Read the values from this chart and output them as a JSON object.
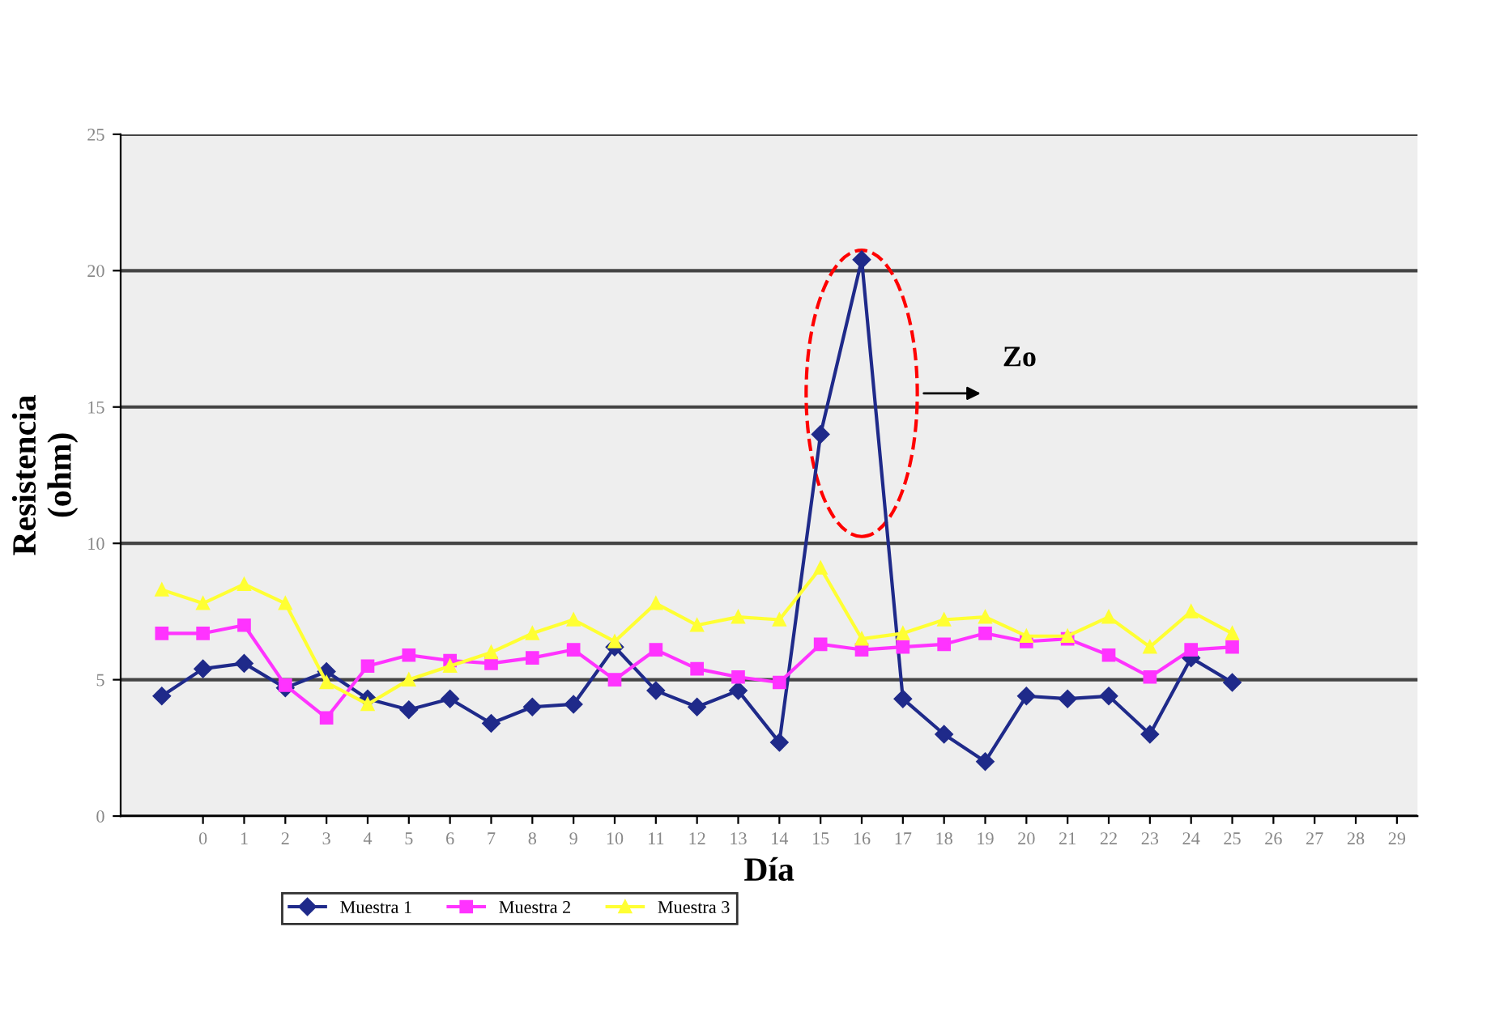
{
  "chart_data": {
    "type": "line",
    "xlabel": "Día",
    "ylabel": "Resistencia\n(ohm)",
    "x": [
      -1,
      0,
      1,
      2,
      3,
      4,
      5,
      6,
      7,
      8,
      9,
      10,
      11,
      12,
      13,
      14,
      15,
      16,
      17,
      18,
      19,
      20,
      21,
      22,
      23,
      24,
      25
    ],
    "series": [
      {
        "name": "Muestra 1",
        "color": "#1f2a8a",
        "marker": "diamond",
        "values": [
          4.4,
          5.4,
          5.6,
          4.7,
          5.3,
          4.3,
          3.9,
          4.3,
          3.4,
          4.0,
          4.1,
          6.2,
          4.6,
          4.0,
          4.6,
          2.7,
          14.0,
          20.4,
          4.3,
          3.0,
          2.0,
          4.4,
          4.3,
          4.4,
          3.0,
          5.8,
          4.9
        ]
      },
      {
        "name": "Muestra 2",
        "color": "#ff33ff",
        "marker": "square",
        "values": [
          6.7,
          6.7,
          7.0,
          4.8,
          3.6,
          5.5,
          5.9,
          5.7,
          5.6,
          5.8,
          6.1,
          5.0,
          6.1,
          5.4,
          5.1,
          4.9,
          6.3,
          6.1,
          6.2,
          6.3,
          6.7,
          6.4,
          6.5,
          5.9,
          5.1,
          6.1,
          6.2
        ]
      },
      {
        "name": "Muestra 3",
        "color": "#ffff33",
        "marker": "triangle",
        "values": [
          8.3,
          7.8,
          8.5,
          7.8,
          4.9,
          4.1,
          5.0,
          5.5,
          6.0,
          6.7,
          7.2,
          6.4,
          7.8,
          7.0,
          7.3,
          7.2,
          9.1,
          6.5,
          6.7,
          7.2,
          7.3,
          6.6,
          6.6,
          7.3,
          6.2,
          7.5,
          6.7
        ]
      }
    ],
    "xlim": [
      -2,
      29.5
    ],
    "xticks": [
      0,
      1,
      2,
      3,
      4,
      5,
      6,
      7,
      8,
      9,
      10,
      11,
      12,
      13,
      14,
      15,
      16,
      17,
      18,
      19,
      20,
      21,
      22,
      23,
      24,
      25,
      26,
      27,
      28,
      29
    ],
    "ylim": [
      0,
      25
    ],
    "yticks": [
      0,
      5,
      10,
      15,
      20,
      25
    ],
    "grid": "y",
    "legend": "bottom",
    "line_style": "solid",
    "annotations": [
      "Zo"
    ]
  }
}
